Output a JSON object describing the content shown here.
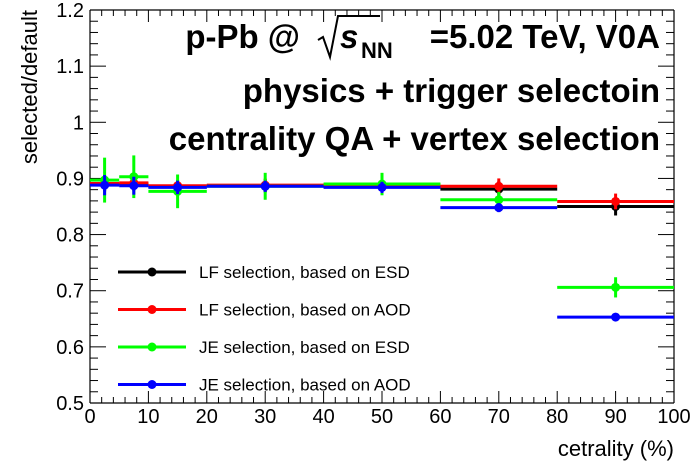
{
  "chart_data": {
    "type": "scatter",
    "title_lines": [
      "p-Pb @",
      "s",
      "NN",
      "=5.02 TeV, V0A",
      "physics + trigger selectoin",
      "centrality QA + vertex selection"
    ],
    "xlabel": "cetrality (%)",
    "ylabel": "selected/default",
    "xlim": [
      0,
      100
    ],
    "ylim": [
      0.5,
      1.2
    ],
    "x_ticks": [
      "0",
      "10",
      "20",
      "30",
      "40",
      "50",
      "60",
      "70",
      "80",
      "90",
      "100"
    ],
    "y_ticks": [
      "0.5",
      "0.6",
      "0.7",
      "0.8",
      "0.9",
      "1",
      "1.1",
      "1.2"
    ],
    "grid": false,
    "legend_position": "bottom-left",
    "series": [
      {
        "name": "LF selection, based on ESD",
        "color": "#000000",
        "points": [
          {
            "x": 2.5,
            "y": 0.889,
            "xlo": 0,
            "xhi": 5,
            "err": 0.012
          },
          {
            "x": 7.5,
            "y": 0.89,
            "xlo": 5,
            "xhi": 10,
            "err": 0.012
          },
          {
            "x": 15,
            "y": 0.885,
            "xlo": 10,
            "xhi": 20,
            "err": 0.01
          },
          {
            "x": 30,
            "y": 0.887,
            "xlo": 20,
            "xhi": 40,
            "err": 0.012
          },
          {
            "x": 50,
            "y": 0.885,
            "xlo": 40,
            "xhi": 60,
            "err": 0.014
          },
          {
            "x": 70,
            "y": 0.881,
            "xlo": 60,
            "xhi": 80,
            "err": 0.014
          },
          {
            "x": 90,
            "y": 0.85,
            "xlo": 80,
            "xhi": 100,
            "err": 0.016
          }
        ]
      },
      {
        "name": "LF selection, based on AOD",
        "color": "#ff0000",
        "points": [
          {
            "x": 2.5,
            "y": 0.891,
            "xlo": 0,
            "xhi": 5,
            "err": 0.012
          },
          {
            "x": 7.5,
            "y": 0.892,
            "xlo": 5,
            "xhi": 10,
            "err": 0.012
          },
          {
            "x": 15,
            "y": 0.887,
            "xlo": 10,
            "xhi": 20,
            "err": 0.01
          },
          {
            "x": 30,
            "y": 0.888,
            "xlo": 20,
            "xhi": 40,
            "err": 0.012
          },
          {
            "x": 50,
            "y": 0.889,
            "xlo": 40,
            "xhi": 60,
            "err": 0.014
          },
          {
            "x": 70,
            "y": 0.886,
            "xlo": 60,
            "xhi": 80,
            "err": 0.014
          },
          {
            "x": 90,
            "y": 0.859,
            "xlo": 80,
            "xhi": 100,
            "err": 0.014
          }
        ]
      },
      {
        "name": "JE selection, based on ESD",
        "color": "#00ff00",
        "points": [
          {
            "x": 2.5,
            "y": 0.897,
            "xlo": 0,
            "xhi": 5,
            "err": 0.04
          },
          {
            "x": 7.5,
            "y": 0.903,
            "xlo": 5,
            "xhi": 10,
            "err": 0.038
          },
          {
            "x": 15,
            "y": 0.877,
            "xlo": 10,
            "xhi": 20,
            "err": 0.03
          },
          {
            "x": 30,
            "y": 0.886,
            "xlo": 20,
            "xhi": 40,
            "err": 0.024
          },
          {
            "x": 50,
            "y": 0.89,
            "xlo": 40,
            "xhi": 60,
            "err": 0.02
          },
          {
            "x": 70,
            "y": 0.862,
            "xlo": 60,
            "xhi": 80,
            "err": 0.014
          },
          {
            "x": 90,
            "y": 0.706,
            "xlo": 80,
            "xhi": 100,
            "err": 0.018
          }
        ]
      },
      {
        "name": "JE selection, based on AOD",
        "color": "#0000ff",
        "points": [
          {
            "x": 2.5,
            "y": 0.888,
            "xlo": 0,
            "xhi": 5,
            "err": 0.018
          },
          {
            "x": 7.5,
            "y": 0.887,
            "xlo": 5,
            "xhi": 10,
            "err": 0.016
          },
          {
            "x": 15,
            "y": 0.884,
            "xlo": 10,
            "xhi": 20,
            "err": 0.012
          },
          {
            "x": 30,
            "y": 0.886,
            "xlo": 20,
            "xhi": 40,
            "err": 0.01
          },
          {
            "x": 50,
            "y": 0.884,
            "xlo": 40,
            "xhi": 60,
            "err": 0.01
          },
          {
            "x": 70,
            "y": 0.848,
            "xlo": 60,
            "xhi": 80,
            "err": 0.008
          },
          {
            "x": 90,
            "y": 0.653,
            "xlo": 80,
            "xhi": 100,
            "err": 0.006
          }
        ]
      }
    ]
  }
}
